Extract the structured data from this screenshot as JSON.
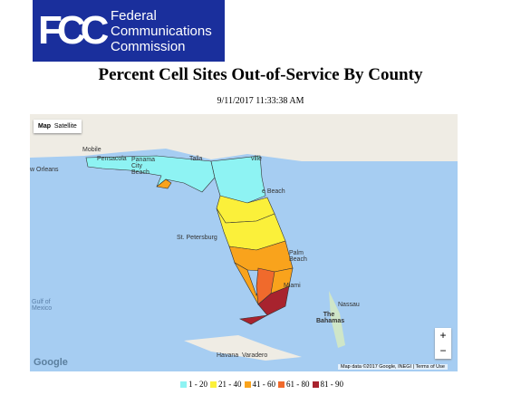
{
  "logo": {
    "mark": "FCC",
    "lines": [
      "Federal",
      "Communications",
      "Commission"
    ]
  },
  "title": "Percent Cell Sites Out-of-Service By County",
  "timestamp": "9/11/2017 11:33:38 AM",
  "map": {
    "buttons": [
      "Map",
      "Satellite"
    ],
    "places": [
      "Mobile",
      "Pensacola",
      "Panama City Beach",
      "Talla",
      "w Orleans",
      "ville",
      "e Beach",
      "St. Petersburg",
      "Palm Beach",
      "Miami",
      "Gulf of Mexico",
      "Nassau",
      "The Bahamas",
      "Havana",
      "Varadero"
    ],
    "zoom": [
      "+",
      "−"
    ],
    "brand": "Google",
    "attribution": "Map data ©2017 Google, INEGI",
    "terms": "Terms of Use"
  },
  "legend": [
    {
      "label": "1 - 20",
      "color": "#8ef3f3"
    },
    {
      "label": "21 - 40",
      "color": "#fbf03a"
    },
    {
      "label": "41 - 60",
      "color": "#f9a31c"
    },
    {
      "label": "61 - 80",
      "color": "#f06a2c"
    },
    {
      "label": "81 - 90",
      "color": "#a8232e"
    }
  ]
}
